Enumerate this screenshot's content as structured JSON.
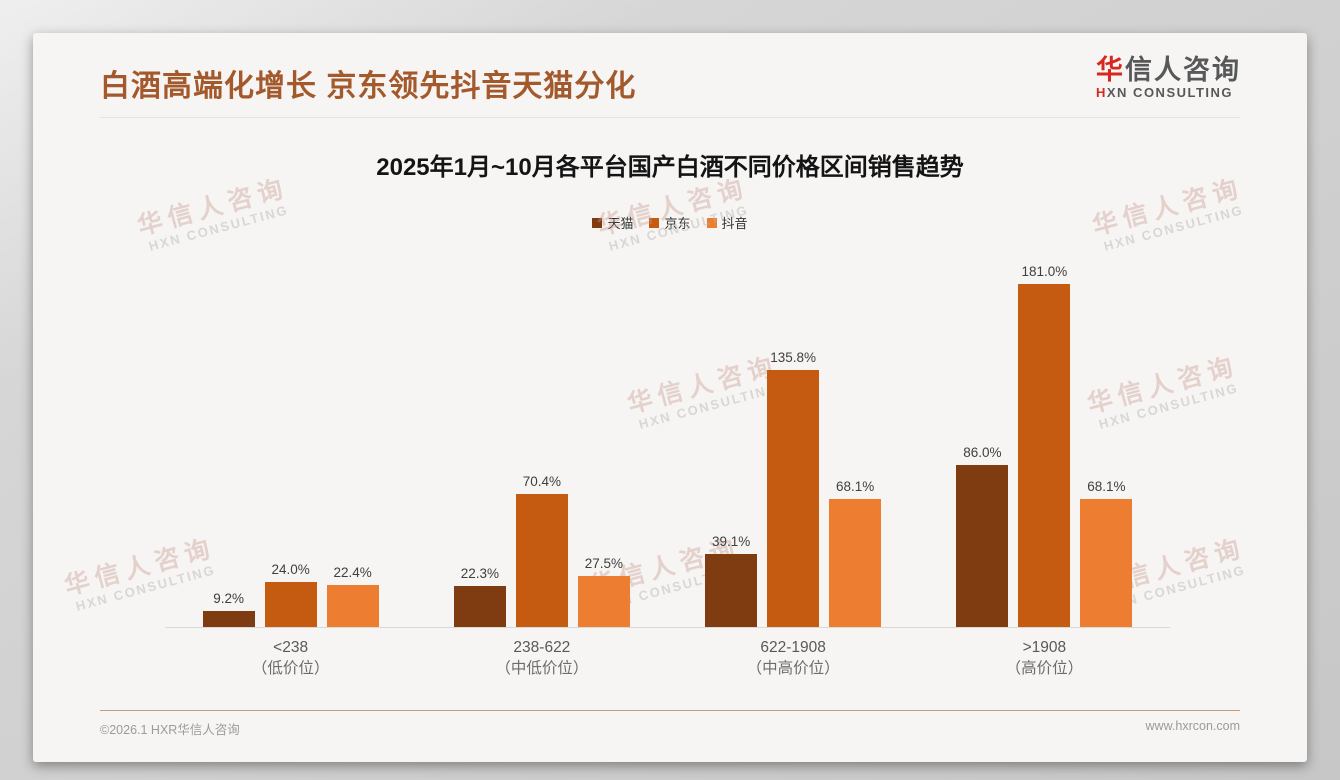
{
  "page": {
    "title": "白酒高端化增长 京东领先抖音天猫分化",
    "title_color": "#a3592c",
    "logo": {
      "cn_first": "华",
      "cn_rest": "信人咨询",
      "en_first": "H",
      "en_rest": "XN CONSULTING",
      "accent_color": "#d6281e"
    },
    "watermark": {
      "line1": "华信人咨询",
      "line2": "HXN CONSULTING"
    },
    "footer": {
      "left": "©2026.1 HXR华信人咨询",
      "right": "www.hxrcon.com"
    }
  },
  "chart_data": {
    "type": "bar",
    "title": "2025年1月~10月各平台国产白酒不同价格区间销售趋势",
    "categories": [
      "<238",
      "238-622",
      "622-1908",
      ">1908"
    ],
    "category_sublabels": [
      "（低价位）",
      "（中低价位）",
      "（中高价位）",
      "（高价位）"
    ],
    "series": [
      {
        "name": "天猫",
        "color": "#7f3c10",
        "values": [
          9.2,
          22.3,
          39.1,
          86.0
        ]
      },
      {
        "name": "京东",
        "color": "#c55a11",
        "values": [
          24.0,
          70.4,
          135.8,
          181.0
        ]
      },
      {
        "name": "抖音",
        "color": "#ed7d31",
        "values": [
          22.4,
          27.5,
          68.1,
          68.1
        ]
      }
    ],
    "value_label_format": "percent_one_decimal",
    "xlabel": "",
    "ylabel": "",
    "ylim": [
      0,
      200
    ],
    "grid": false,
    "legend_position": "top-center",
    "axis_line_color": "#d9d9d8"
  }
}
